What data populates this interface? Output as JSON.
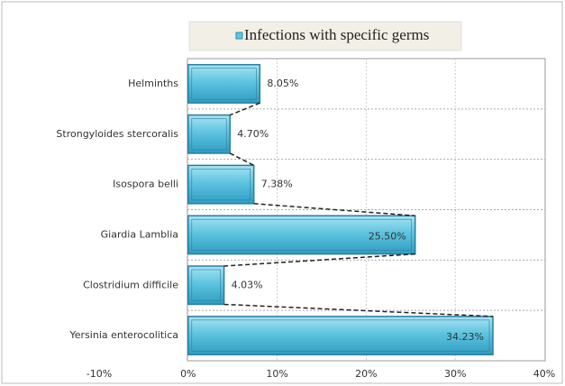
{
  "chart_data": {
    "type": "hbar",
    "categories": [
      "Helminths",
      "Strongyloides stercoralis",
      "Isospora belli",
      "Giardia Lamblia",
      "Clostridium difficile",
      "Yersinia enterocolitica"
    ],
    "series": [
      {
        "name": "Infections with specific germs",
        "color": "#5ec4e0",
        "values": [
          8.05,
          4.7,
          7.38,
          25.5,
          4.03,
          34.23
        ],
        "value_labels": [
          "8.05%",
          "4.70%",
          "7.38%",
          "25.50%",
          "4.03%",
          "34.23%"
        ]
      }
    ],
    "xlim": [
      -10,
      40
    ],
    "xticks": [
      {
        "value": -10,
        "label": "-10%"
      },
      {
        "value": 0,
        "label": "0%"
      },
      {
        "value": 10,
        "label": "10%"
      },
      {
        "value": 20,
        "label": "20%"
      },
      {
        "value": 30,
        "label": "30%"
      },
      {
        "value": 40,
        "label": "40%"
      }
    ],
    "grid": true,
    "legend": "top"
  }
}
